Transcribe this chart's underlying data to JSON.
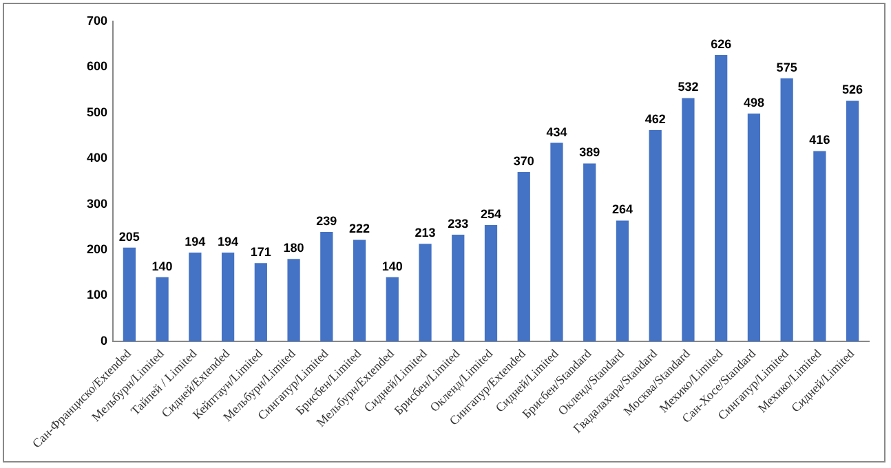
{
  "chart_data": {
    "type": "bar",
    "categories": [
      "Сан-Франциско/Extended",
      "Мельбурн/Limited",
      "Тайпей / Limited",
      "Сидней/Extended",
      "Кейптаун/Limited",
      "Мельбурн/Limited",
      "Сингапур/Limited",
      "Брисбен/Limited",
      "Мельбурн/Extended",
      "Сидней/Limited",
      "Брисбен/Limited",
      "Окленд/Limited",
      "Сингапур/Extended",
      "Сидней/Limited",
      "Брисбен/Standard",
      "Окленд/Standard",
      "Гвадалахара/Standard",
      "Москва/Standard",
      "Мехико/Limited",
      "Сан-Хосе/Standard",
      "Сингапур/Limited",
      "Мехико/Limited",
      "Сидней/Limited"
    ],
    "values": [
      205,
      140,
      194,
      194,
      171,
      180,
      239,
      222,
      140,
      213,
      233,
      254,
      370,
      434,
      389,
      264,
      462,
      532,
      626,
      498,
      575,
      416,
      526
    ],
    "color": "#4472c4",
    "ylim": [
      0,
      700
    ],
    "yticks": [
      0,
      100,
      200,
      300,
      400,
      500,
      600,
      700
    ],
    "grid": false,
    "data_labels": true,
    "legend": false
  }
}
